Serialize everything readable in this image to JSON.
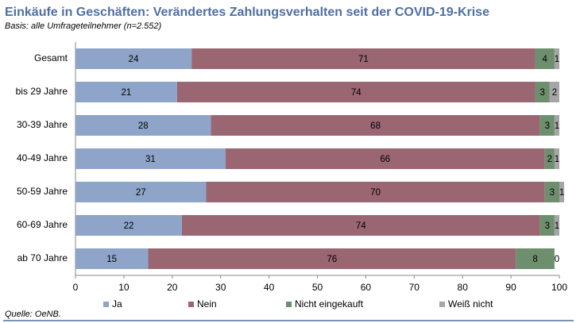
{
  "chart_data": {
    "type": "stacked-barh",
    "title": "Einkäufe in Geschäften: Verändertes Zahlungsverhalten seit der COVID-19-Krise",
    "subtitle": "Basis: alle Umfrageteilnehmer (n=2.552)",
    "source": "Quelle: OeNB.",
    "categories": [
      "Gesamt",
      "bis 29 Jahre",
      "30-39 Jahre",
      "40-49 Jahre",
      "50-59 Jahre",
      "60-69 Jahre",
      "ab 70 Jahre"
    ],
    "series": [
      {
        "name": "Ja",
        "color": "#8ea5c9",
        "values": [
          24,
          21,
          28,
          31,
          27,
          22,
          15
        ]
      },
      {
        "name": "Nein",
        "color": "#9a6672",
        "values": [
          71,
          74,
          68,
          66,
          70,
          74,
          76
        ]
      },
      {
        "name": "Nicht eingekauft",
        "color": "#6e8f6e",
        "values": [
          4,
          3,
          3,
          2,
          3,
          3,
          8
        ]
      },
      {
        "name": "Weiß nicht",
        "color": "#a6a6a6",
        "values": [
          1,
          2,
          1,
          1,
          1,
          1,
          0
        ]
      }
    ],
    "xlim": [
      0,
      100
    ],
    "xticks": [
      0,
      10,
      20,
      30,
      40,
      50,
      60,
      70,
      80,
      90,
      100
    ],
    "legend": "bottom"
  }
}
